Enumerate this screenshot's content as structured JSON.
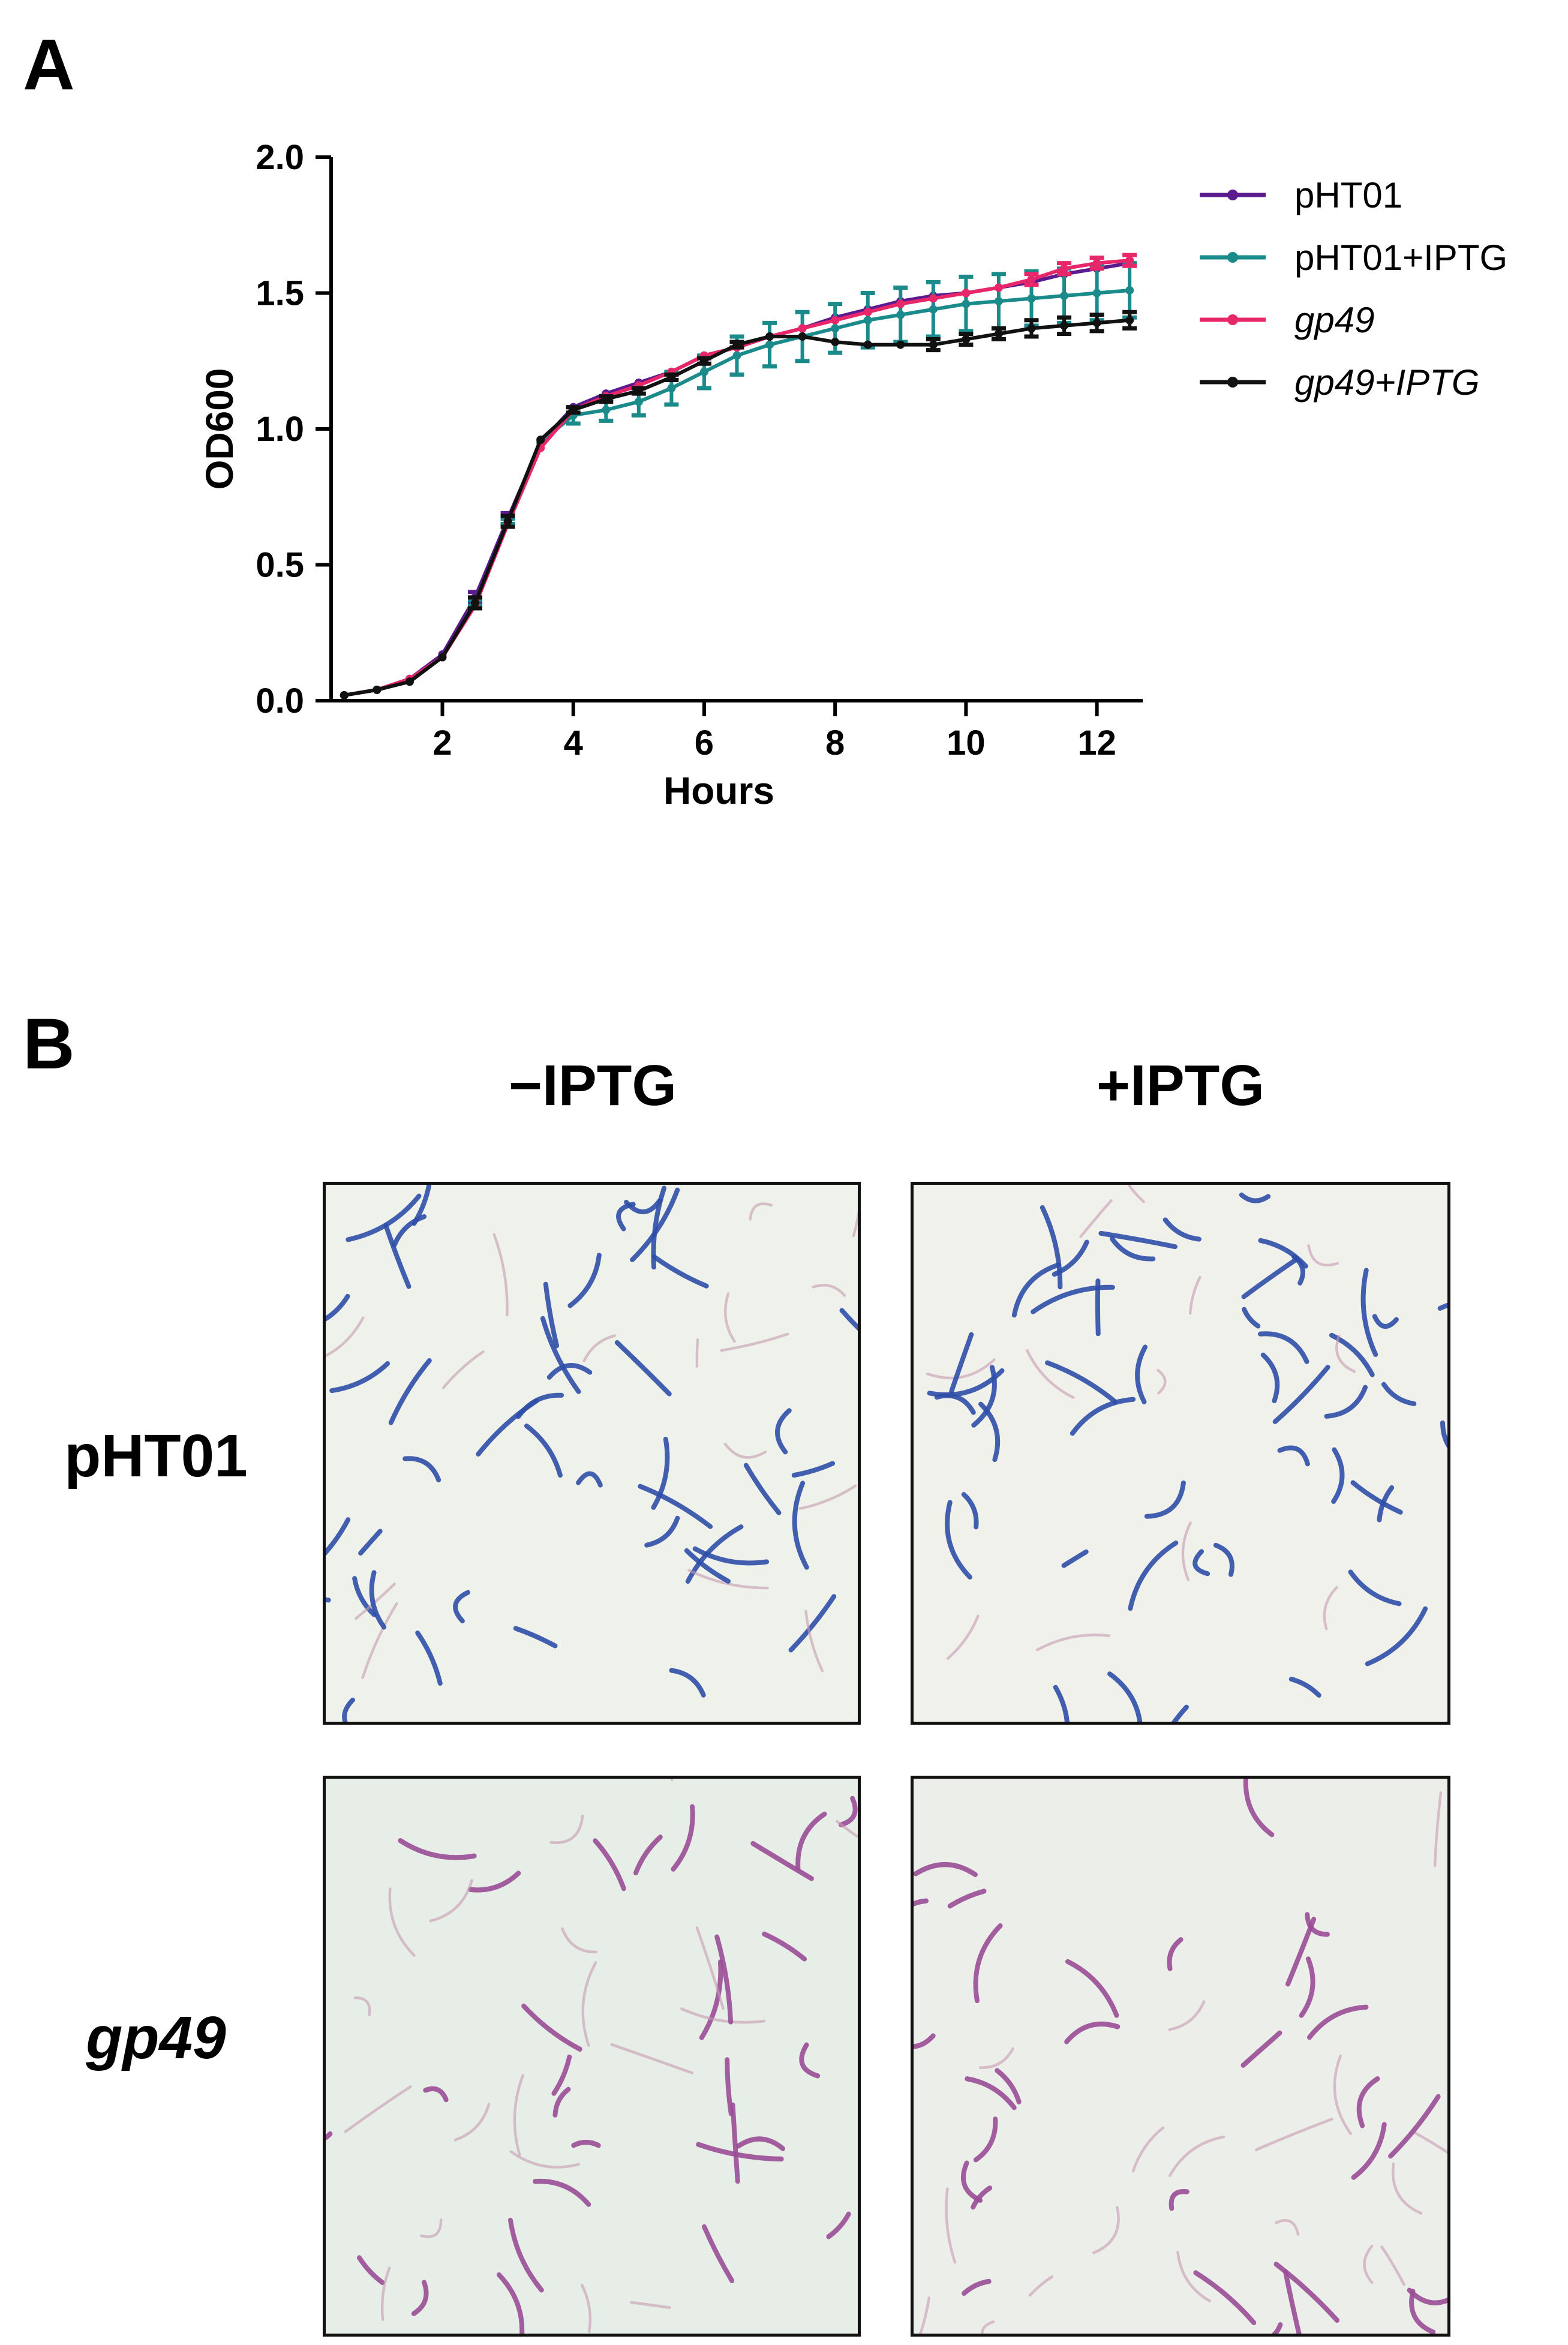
{
  "panels": {
    "a_label": "A",
    "b_label": "B"
  },
  "chart_data": {
    "type": "line",
    "xlabel": "Hours",
    "ylabel": "OD600",
    "xlim": [
      0.3,
      12.7
    ],
    "ylim": [
      0.0,
      2.0
    ],
    "x_ticks": [
      2,
      4,
      6,
      8,
      10,
      12
    ],
    "y_ticks": [
      0.0,
      0.5,
      1.0,
      1.5,
      2.0
    ],
    "y_tick_labels": [
      "0.0",
      "0.5",
      "1.0",
      "1.5",
      "2.0"
    ],
    "legend_position": "right",
    "x": [
      0.5,
      1,
      1.5,
      2,
      2.5,
      3,
      3.5,
      4,
      4.5,
      5,
      5.5,
      6,
      6.5,
      7,
      7.5,
      8,
      8.5,
      9,
      9.5,
      10,
      10.5,
      11,
      11.5,
      12,
      12.5
    ],
    "series": [
      {
        "name": "pHT01",
        "italic": false,
        "color": "#5b1a8e",
        "values": [
          0.02,
          0.04,
          0.08,
          0.17,
          0.38,
          0.67,
          0.95,
          1.08,
          1.13,
          1.17,
          1.21,
          1.27,
          1.3,
          1.34,
          1.37,
          1.41,
          1.44,
          1.47,
          1.49,
          1.5,
          1.52,
          1.54,
          1.57,
          1.59,
          1.61
        ],
        "errors": [
          0,
          0,
          0,
          0,
          0.02,
          0.02,
          0,
          0,
          0,
          0,
          0,
          0,
          0,
          0,
          0,
          0,
          0,
          0,
          0,
          0,
          0,
          0,
          0,
          0,
          0
        ]
      },
      {
        "name": "pHT01+IPTG",
        "italic": false,
        "color": "#1a8a8a",
        "values": [
          0.02,
          0.04,
          0.07,
          0.16,
          0.36,
          0.66,
          0.95,
          1.05,
          1.07,
          1.1,
          1.15,
          1.21,
          1.27,
          1.31,
          1.34,
          1.37,
          1.4,
          1.42,
          1.44,
          1.46,
          1.47,
          1.48,
          1.49,
          1.5,
          1.51
        ],
        "errors": [
          0,
          0,
          0,
          0,
          0.01,
          0.01,
          0,
          0.03,
          0.04,
          0.05,
          0.06,
          0.06,
          0.07,
          0.08,
          0.09,
          0.09,
          0.1,
          0.1,
          0.1,
          0.1,
          0.1,
          0.1,
          0.1,
          0.1,
          0.1
        ]
      },
      {
        "name": "gp49",
        "italic": true,
        "color": "#e8276a",
        "values": [
          0.02,
          0.04,
          0.08,
          0.16,
          0.35,
          0.65,
          0.93,
          1.07,
          1.12,
          1.16,
          1.21,
          1.27,
          1.3,
          1.34,
          1.37,
          1.4,
          1.43,
          1.46,
          1.48,
          1.5,
          1.52,
          1.55,
          1.59,
          1.61,
          1.62
        ],
        "errors": [
          0,
          0,
          0,
          0,
          0,
          0,
          0,
          0,
          0,
          0,
          0,
          0,
          0,
          0,
          0,
          0,
          0,
          0,
          0,
          0,
          0,
          0.02,
          0.02,
          0.02,
          0.02
        ]
      },
      {
        "name": "gp49+IPTG",
        "italic": true,
        "color": "#111111",
        "values": [
          0.02,
          0.04,
          0.07,
          0.16,
          0.36,
          0.66,
          0.96,
          1.07,
          1.11,
          1.14,
          1.19,
          1.25,
          1.31,
          1.34,
          1.34,
          1.32,
          1.31,
          1.31,
          1.31,
          1.33,
          1.35,
          1.37,
          1.38,
          1.39,
          1.4
        ],
        "errors": [
          0,
          0,
          0,
          0,
          0.02,
          0.02,
          0,
          0.01,
          0.01,
          0.01,
          0.01,
          0.01,
          0.01,
          0,
          0,
          0,
          0,
          0,
          0.02,
          0.02,
          0.02,
          0.03,
          0.03,
          0.03,
          0.03
        ]
      }
    ]
  },
  "micrographs": {
    "col_headers": [
      "−IPTG",
      "+IPTG"
    ],
    "row_labels": [
      "pHT01",
      "gp49"
    ],
    "row_italic": [
      false,
      true
    ],
    "cells": [
      {
        "row": 0,
        "col": 0,
        "stain": "blue",
        "background": "#eef2ea"
      },
      {
        "row": 0,
        "col": 1,
        "stain": "blue",
        "background": "#f1f1ec"
      },
      {
        "row": 1,
        "col": 0,
        "stain": "purple",
        "background": "#e6eee7"
      },
      {
        "row": 1,
        "col": 1,
        "stain": "purple",
        "background": "#eceee9"
      }
    ],
    "stain_colors": {
      "blue": "#2f4ea8",
      "purple": "#9a4d96"
    }
  }
}
